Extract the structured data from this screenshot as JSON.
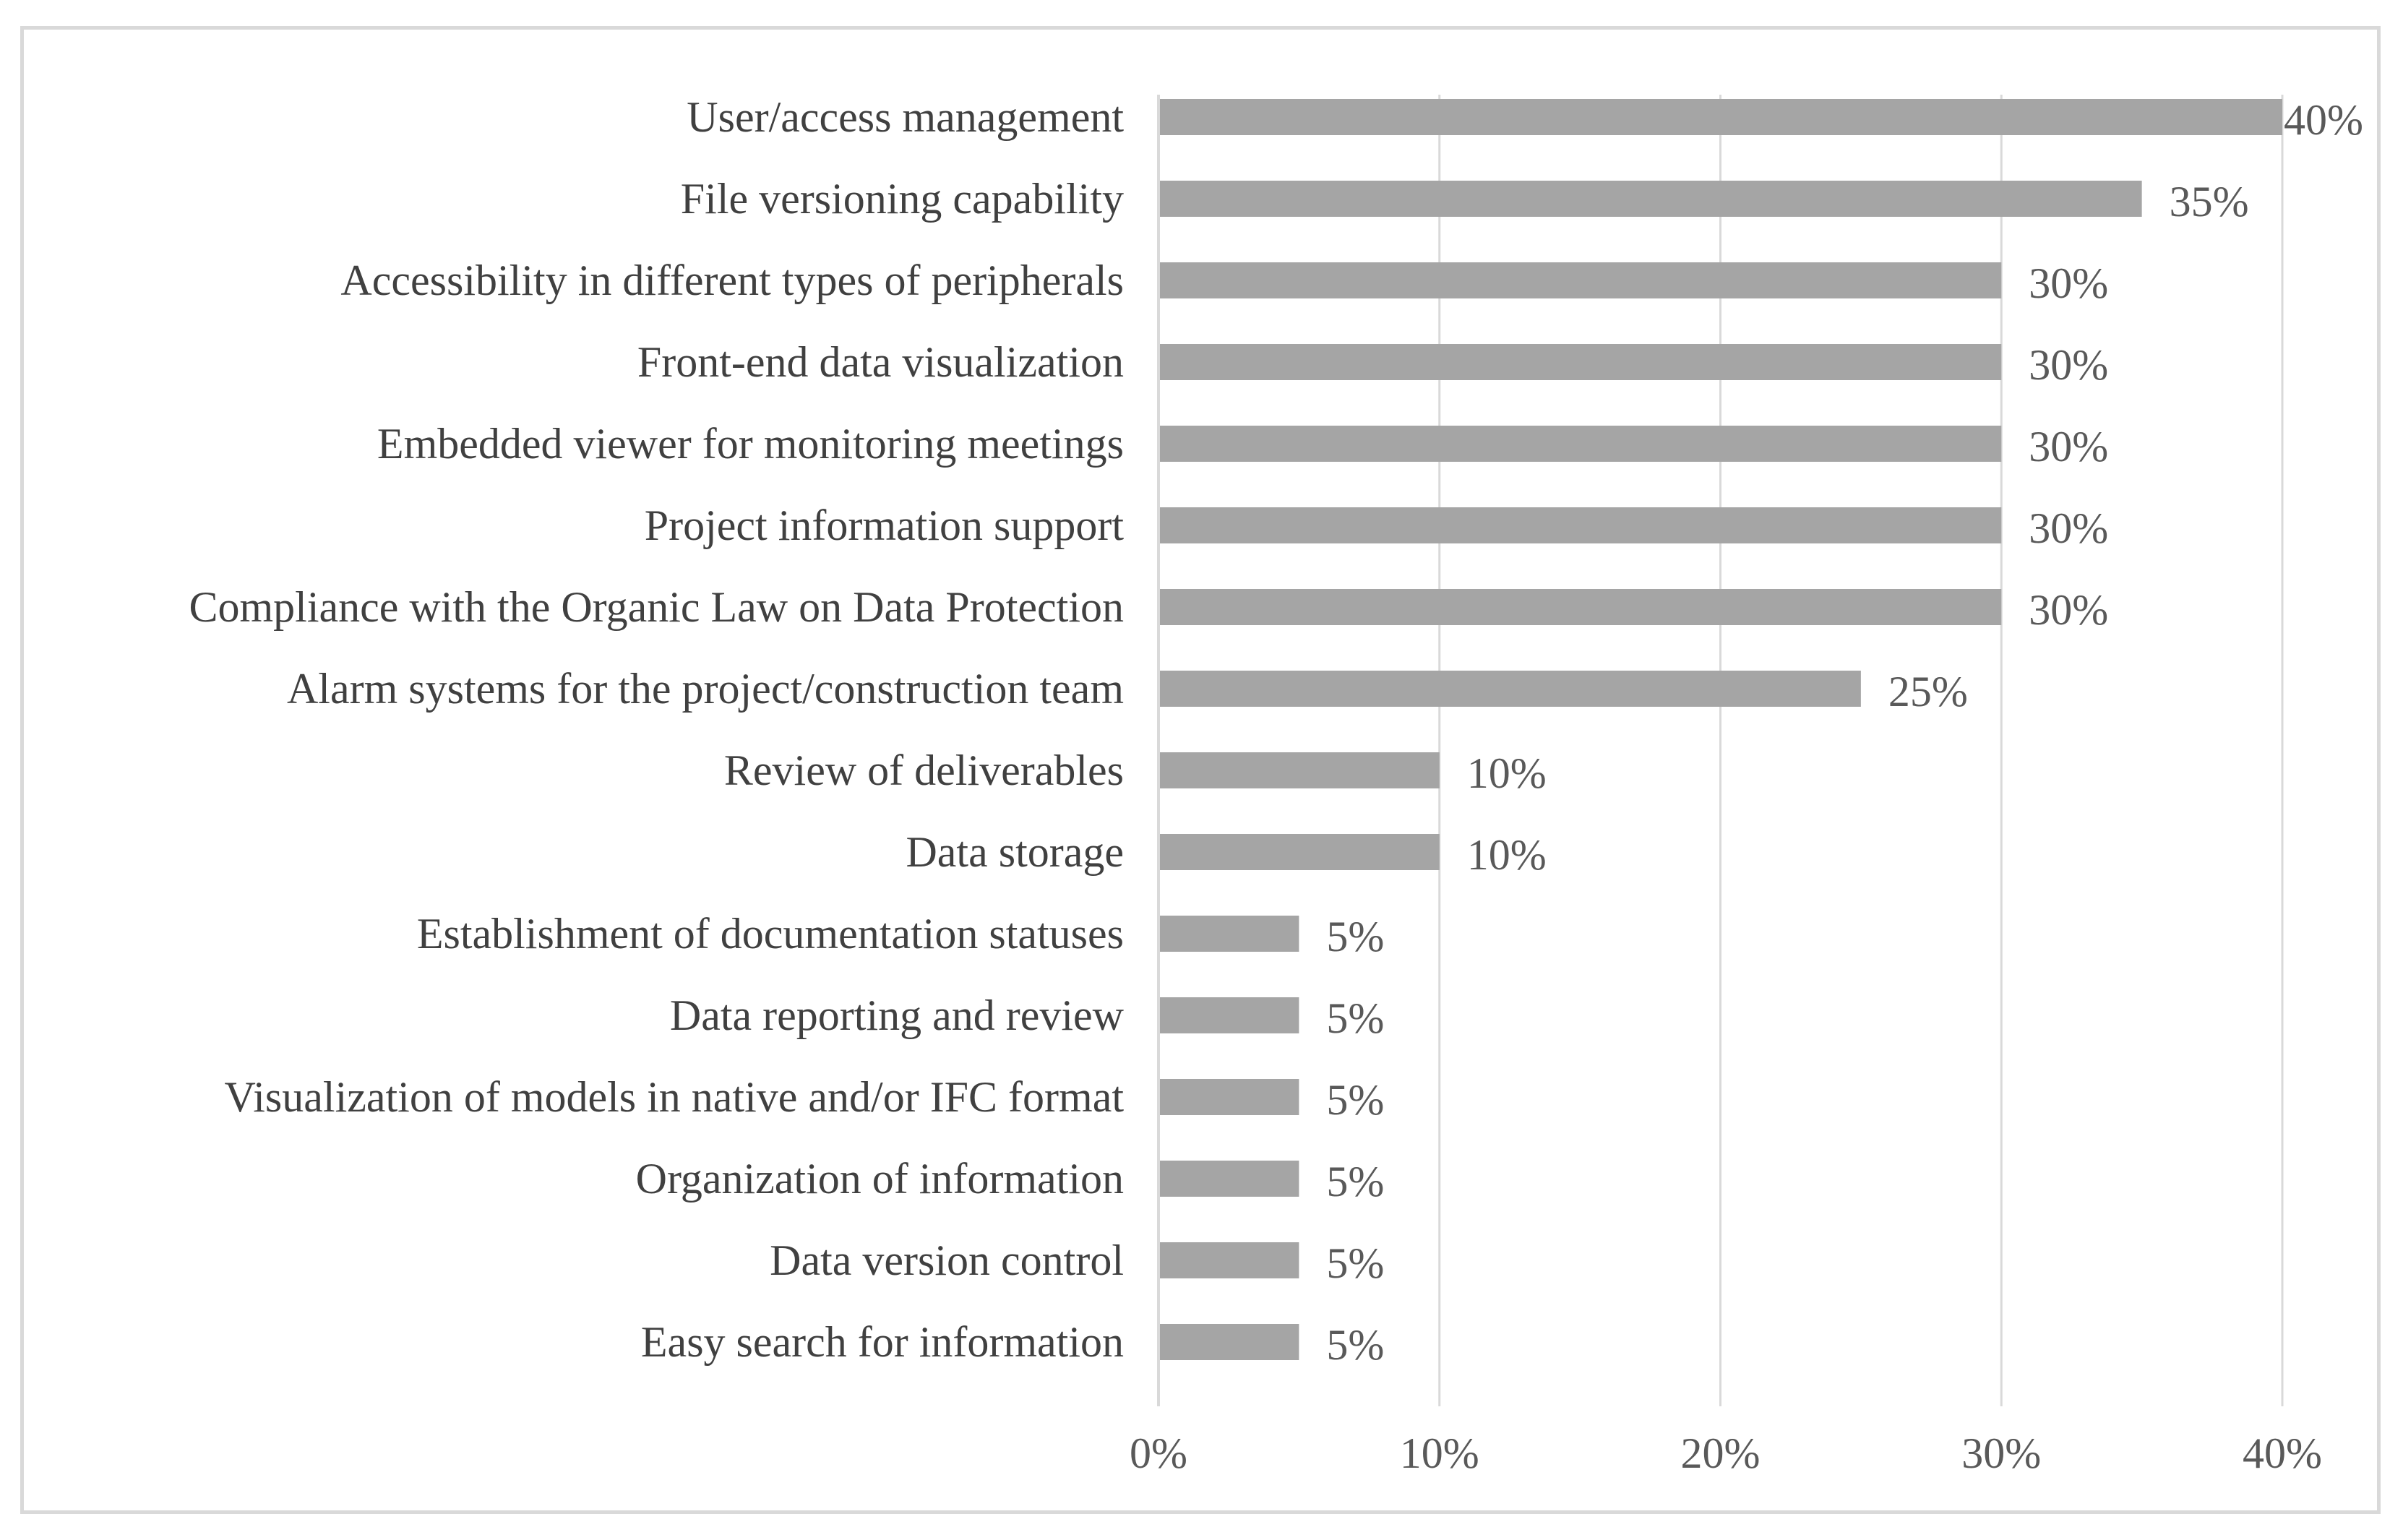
{
  "chart_data": {
    "type": "bar",
    "orientation": "horizontal",
    "title": "",
    "xlabel": "",
    "ylabel": "",
    "categories": [
      "User/access management",
      "File versioning capability",
      "Accessibility in different types of peripherals",
      "Front-end data visualization",
      "Embedded viewer for monitoring meetings",
      "Project information support",
      "Compliance with the Organic Law on Data Protection",
      "Alarm systems for the project/construction team",
      "Review of deliverables",
      "Data storage",
      "Establishment of documentation statuses",
      "Data reporting and review",
      "Visualization of models in native and/or IFC format",
      "Organization of information",
      "Data version control",
      "Easy search for information"
    ],
    "values": [
      40,
      35,
      30,
      30,
      30,
      30,
      30,
      25,
      10,
      10,
      5,
      5,
      5,
      5,
      5,
      5
    ],
    "value_labels": [
      "40%",
      "35%",
      "30%",
      "30%",
      "30%",
      "30%",
      "30%",
      "25%",
      "10%",
      "10%",
      "5%",
      "5%",
      "5%",
      "5%",
      "5%",
      "5%"
    ],
    "xlim": [
      0,
      40
    ],
    "xticks": [
      0,
      10,
      20,
      30,
      40
    ],
    "xtick_labels": [
      "0%",
      "10%",
      "20%",
      "30%",
      "40%"
    ],
    "grid": true,
    "legend": "none",
    "colors": {
      "bar": "#a5a5a5",
      "grid": "#d9d9d9",
      "axis": "#d9d9d9",
      "text": "#595959",
      "frame": "#d9d9d9"
    }
  }
}
